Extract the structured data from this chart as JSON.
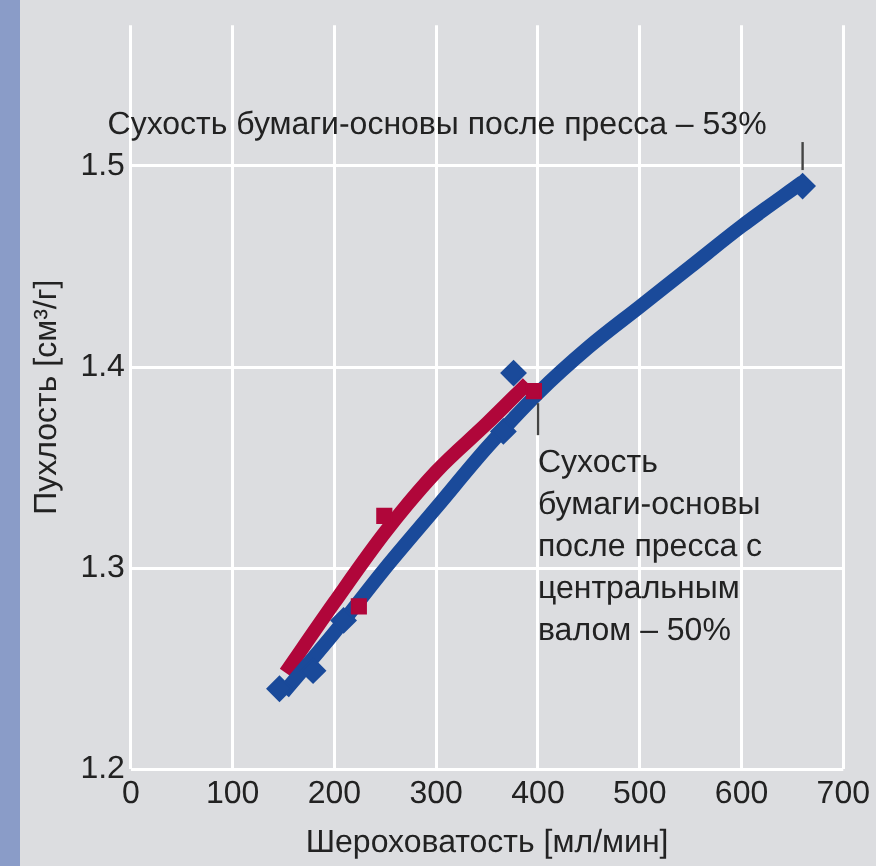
{
  "chart_data": {
    "type": "line",
    "xlabel": "Шероховатость [мл/мин]",
    "ylabel": "Пухлость [см³/г]",
    "xlim": [
      0,
      700
    ],
    "xticks": [
      0,
      100,
      200,
      300,
      400,
      500,
      600,
      700
    ],
    "ylim": [
      1.2,
      1.57
    ],
    "yticks": [
      1.2,
      1.3,
      1.4,
      1.5
    ],
    "grid": true,
    "legend": false,
    "line_style": "solid",
    "series": [
      {
        "color": "#1a4a9a",
        "marker": "none",
        "x": [
          150,
          200,
          250,
          300,
          350,
          400,
          450,
          500,
          550,
          600,
          660
        ],
        "values": [
          1.238,
          1.268,
          1.3,
          1.33,
          1.36,
          1.387,
          1.41,
          1.43,
          1.45,
          1.47,
          1.492
        ]
      },
      {
        "color": "#b0063a",
        "marker": "none",
        "x": [
          152,
          200,
          250,
          300,
          350,
          390
        ],
        "values": [
          1.248,
          1.283,
          1.318,
          1.348,
          1.372,
          1.392
        ]
      },
      {
        "type": "scatter",
        "color": "#1a4a9a",
        "marker": "diamond",
        "x": [
          146,
          179,
          209,
          366,
          376,
          660
        ],
        "values": [
          1.24,
          1.249,
          1.274,
          1.368,
          1.397,
          1.49
        ]
      },
      {
        "type": "scatter",
        "color": "#b0063a",
        "marker": "square",
        "x": [
          224,
          249,
          396
        ],
        "values": [
          1.281,
          1.326,
          1.388
        ]
      }
    ],
    "annotations": [
      {
        "text": "Сухость бумаги-основы после пресса – 53%",
        "x": 660,
        "y": 1.49
      },
      {
        "text": "Сухость бумаги-основы после пресса с центральным валом – 50%",
        "x": 400,
        "y": 1.39
      }
    ]
  }
}
